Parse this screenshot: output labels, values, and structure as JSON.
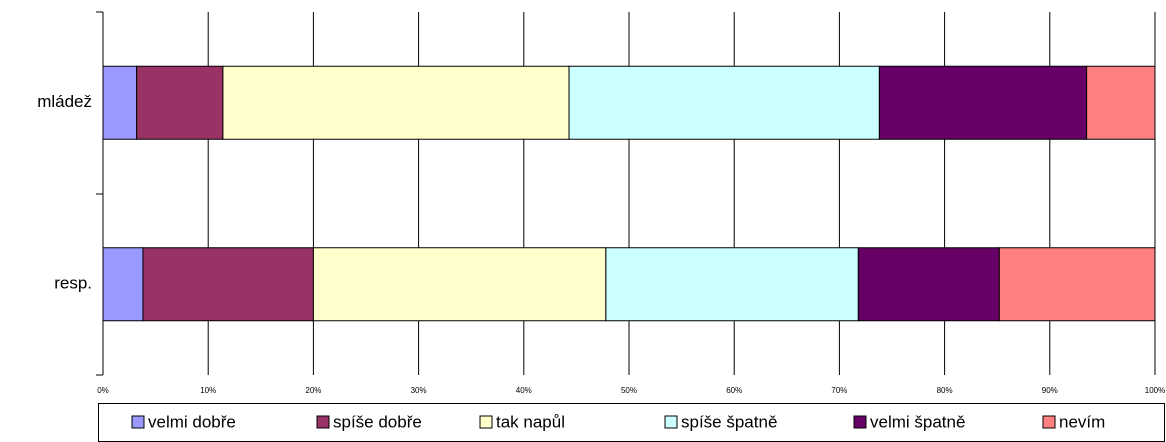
{
  "chart_data": {
    "type": "stacked-bar-horizontal",
    "categories": [
      "mládež",
      "resp."
    ],
    "series": [
      {
        "name": "velmi dobře",
        "color": "#9999ff",
        "values": [
          3.2,
          3.8
        ]
      },
      {
        "name": "spíše dobře",
        "color": "#993366",
        "values": [
          8.2,
          16.2
        ]
      },
      {
        "name": "tak napůl",
        "color": "#ffffcc",
        "values": [
          32.9,
          27.8
        ]
      },
      {
        "name": "spíše špatně",
        "color": "#ccffff",
        "values": [
          29.5,
          24.0
        ]
      },
      {
        "name": "velmi špatně",
        "color": "#660066",
        "values": [
          19.7,
          13.4
        ]
      },
      {
        "name": "nevím",
        "color": "#ff8080",
        "values": [
          6.5,
          14.8
        ]
      }
    ],
    "xlim": [
      0,
      100
    ],
    "xticks": [
      {
        "value": 0,
        "label": "0%"
      },
      {
        "value": 10,
        "label": "10%"
      },
      {
        "value": 20,
        "label": "20%"
      },
      {
        "value": 30,
        "label": "30%"
      },
      {
        "value": 40,
        "label": "40%"
      },
      {
        "value": 50,
        "label": "50%"
      },
      {
        "value": 60,
        "label": "60%"
      },
      {
        "value": 70,
        "label": "70%"
      },
      {
        "value": 80,
        "label": "80%"
      },
      {
        "value": 90,
        "label": "90%"
      },
      {
        "value": 100,
        "label": "100%"
      }
    ],
    "grid": true,
    "legend": "bottom"
  }
}
